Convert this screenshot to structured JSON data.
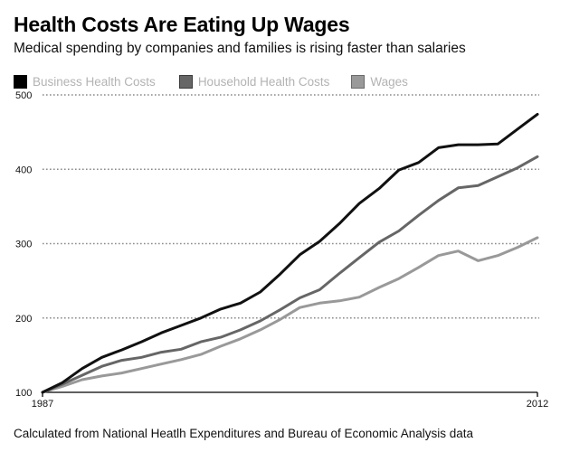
{
  "title": "Health Costs Are Eating Up Wages",
  "subtitle": "Medical spending by companies and families is rising faster than salaries",
  "footer": "Calculated from National Heatlh Expenditures and Bureau of Economic Analysis data",
  "legend": [
    {
      "label": "Business Health Costs",
      "color": "#000000",
      "border": "#000000"
    },
    {
      "label": "Household Health Costs",
      "color": "#666666",
      "border": "#3a3a3a"
    },
    {
      "label": "Wages",
      "color": "#999999",
      "border": "#6a6a6a"
    }
  ],
  "chart_data": {
    "type": "line",
    "title": "Health Costs Are Eating Up Wages",
    "subtitle": "Medical spending by companies and families is rising faster than salaries",
    "xlabel": "",
    "ylabel": "",
    "x": [
      1987,
      1988,
      1989,
      1990,
      1991,
      1992,
      1993,
      1994,
      1995,
      1996,
      1997,
      1998,
      1999,
      2000,
      2001,
      2002,
      2003,
      2004,
      2005,
      2006,
      2007,
      2008,
      2009,
      2010,
      2011,
      2012
    ],
    "xlim": [
      1987,
      2012
    ],
    "x_tick_labels": [
      "1987",
      "2012"
    ],
    "ylim": [
      100,
      500
    ],
    "y_ticks": [
      100,
      200,
      300,
      400,
      500
    ],
    "y_tick_labels": [
      "100",
      "200",
      "300",
      "400",
      "500"
    ],
    "grid": "horizontal dotted",
    "legend_position": "top-left",
    "series": [
      {
        "name": "Business Health Costs",
        "color": "#111111",
        "values": [
          100,
          113,
          132,
          147,
          157,
          168,
          180,
          190,
          200,
          212,
          220,
          235,
          259,
          285,
          303,
          327,
          354,
          374,
          399,
          409,
          429,
          433,
          433,
          434,
          454,
          474
        ]
      },
      {
        "name": "Household Health Costs",
        "color": "#666666",
        "values": [
          100,
          111,
          123,
          135,
          143,
          147,
          154,
          158,
          168,
          174,
          184,
          196,
          211,
          227,
          238,
          260,
          281,
          302,
          317,
          338,
          358,
          375,
          378,
          390,
          402,
          417
        ]
      },
      {
        "name": "Wages",
        "color": "#999999",
        "values": [
          100,
          108,
          117,
          122,
          126,
          132,
          138,
          144,
          151,
          162,
          172,
          184,
          198,
          214,
          220,
          223,
          228,
          241,
          253,
          268,
          284,
          290,
          277,
          284,
          295,
          308
        ]
      }
    ]
  }
}
